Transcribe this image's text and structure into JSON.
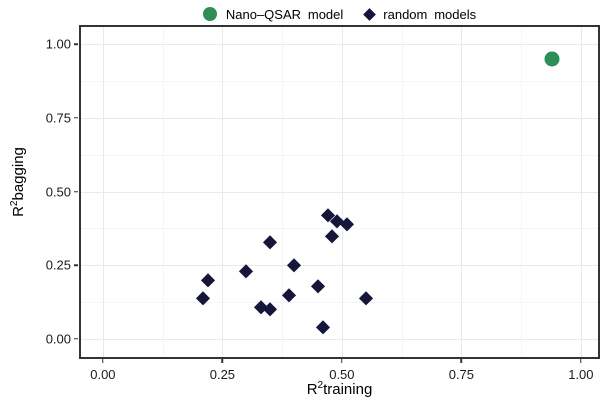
{
  "legend": {
    "items": [
      {
        "label": "Nano–QSAR model",
        "marker": "circle",
        "color": "#2e8e58"
      },
      {
        "label": "random models",
        "marker": "diamond",
        "color": "#16163a"
      }
    ]
  },
  "axes": {
    "x": {
      "title_base": "R",
      "title_sup": "2",
      "title_rest": "training"
    },
    "y": {
      "title_base": "R",
      "title_sup": "2",
      "title_rest": "bagging"
    }
  },
  "chart_data": {
    "type": "scatter",
    "title": "",
    "xlabel": "R2training",
    "ylabel": "R2bagging",
    "xlim": [
      -0.05,
      1.04
    ],
    "ylim": [
      -0.068,
      1.065
    ],
    "grid": true,
    "legend_position": "top",
    "x_ticks": [
      0,
      0.25,
      0.5,
      0.75,
      1.0
    ],
    "x_tick_labels": [
      "0.00",
      "0.25",
      "0.50",
      "0.75",
      "1.00"
    ],
    "x_minor_ticks": [
      0.125,
      0.375,
      0.625,
      0.875
    ],
    "y_ticks": [
      0,
      0.25,
      0.5,
      0.75,
      1.0
    ],
    "y_tick_labels": [
      "0.00",
      "0.25",
      "0.50",
      "0.75",
      "1.00"
    ],
    "y_minor_ticks": [
      0.125,
      0.375,
      0.625,
      0.875
    ],
    "series": [
      {
        "name": "Nano–QSAR model",
        "marker": "circle",
        "color": "#2e8e58",
        "points": [
          [
            0.94,
            0.95
          ]
        ]
      },
      {
        "name": "random models",
        "marker": "diamond",
        "color": "#16163a",
        "points": [
          [
            0.47,
            0.42
          ],
          [
            0.49,
            0.4
          ],
          [
            0.51,
            0.39
          ],
          [
            0.48,
            0.35
          ],
          [
            0.35,
            0.33
          ],
          [
            0.4,
            0.25
          ],
          [
            0.3,
            0.23
          ],
          [
            0.22,
            0.2
          ],
          [
            0.45,
            0.18
          ],
          [
            0.39,
            0.15
          ],
          [
            0.21,
            0.14
          ],
          [
            0.55,
            0.14
          ],
          [
            0.33,
            0.11
          ],
          [
            0.35,
            0.1
          ],
          [
            0.46,
            0.04
          ]
        ]
      }
    ]
  }
}
